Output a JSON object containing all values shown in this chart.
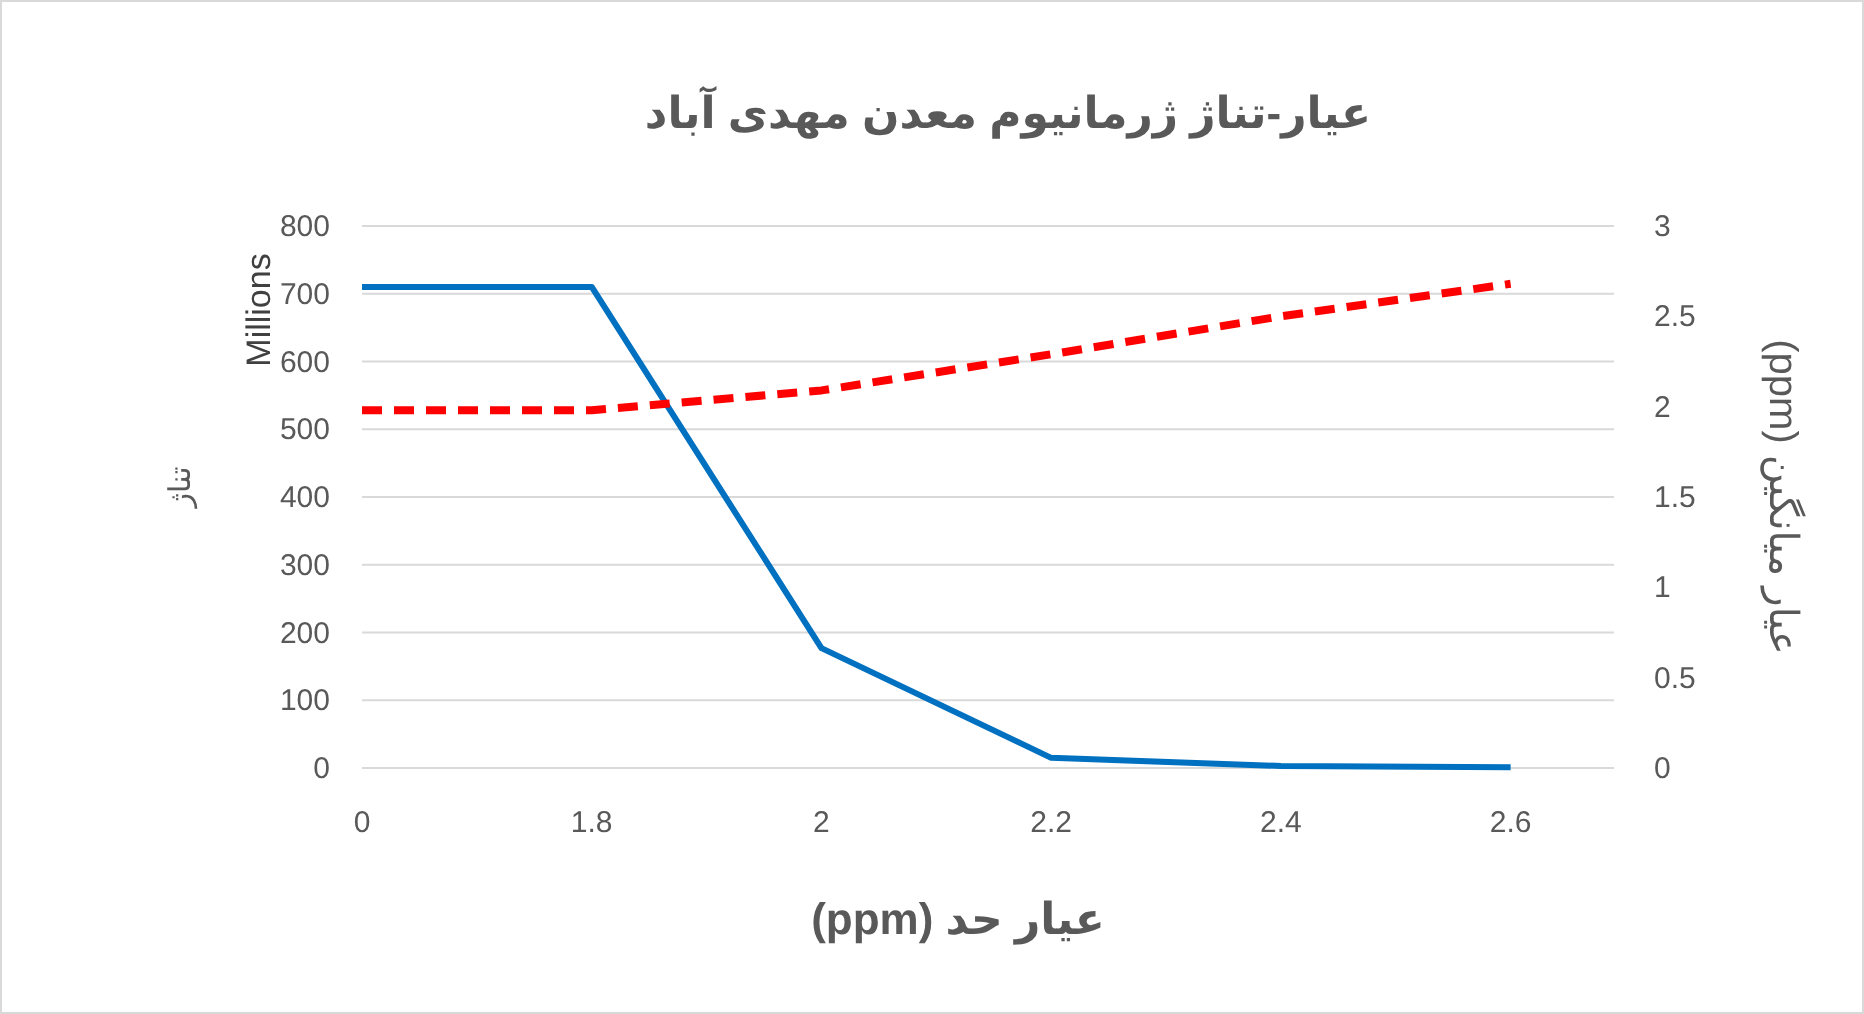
{
  "chart_data": {
    "type": "line",
    "title": "عیار-تناژ ژرمانیوم معدن مهدی آباد",
    "xlabel": "عیار حد (ppm)",
    "ylabel": "تناژ",
    "y2label": "عیار میانگین (ppm)",
    "annotations": [
      "Millions"
    ],
    "categories": [
      "0",
      "1.8",
      "2",
      "2.2",
      "2.4",
      "2.6"
    ],
    "series": [
      {
        "color": "#0070c0",
        "line_style": "solid",
        "values": [
          710,
          710,
          177,
          15,
          3,
          1
        ]
      },
      {
        "color": "#ff0000",
        "line_style": "dashed",
        "axis": "y2",
        "values": [
          1.98,
          1.98,
          2.09,
          2.29,
          2.5,
          2.68
        ]
      }
    ],
    "ylim": [
      0,
      800
    ],
    "yticks": [
      0,
      100,
      200,
      300,
      400,
      500,
      600,
      700,
      800
    ],
    "y2lim": [
      0,
      3
    ],
    "y2ticks": [
      0,
      0.5,
      1,
      1.5,
      2,
      2.5,
      3
    ],
    "grid": "y"
  }
}
